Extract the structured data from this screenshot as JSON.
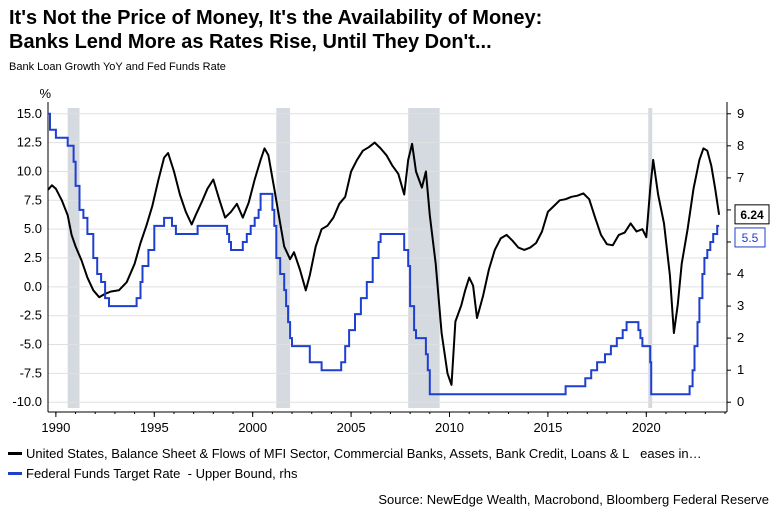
{
  "header": {
    "title_line1": "It's Not the Price of Money, It's the Availability of Money:",
    "title_line2": "Banks Lend More as Rates Rise, Until They Don't...",
    "subtitle": "Bank Loan Growth YoY and Fed Funds Rate"
  },
  "legend": {
    "series1": "United States, Balance Sheet & Flows of MFI Sector, Commercial Banks, Assets, Bank Credit, Loans & L   eases in…",
    "series2": "Federal Funds Target Rate  - Upper Bound, rhs"
  },
  "source": "Source: NewEdge Wealth, Macrobond, Bloomberg Federal Reserve",
  "colors": {
    "loan_growth": "#000000",
    "fed_funds": "#1f3fcf",
    "recession": "#d5d9e0",
    "grid": "#e0e0e0"
  },
  "chart_data": {
    "type": "line",
    "ylabel_left": "%",
    "x_ticks": [
      "1990",
      "1995",
      "2000",
      "2005",
      "2010",
      "2015",
      "2020"
    ],
    "x_range": [
      1989.6,
      2024.1
    ],
    "ylim_left": [
      -10.5,
      15.5
    ],
    "yticks_left": [
      "15.0",
      "12.5",
      "10.0",
      "7.5",
      "5.0",
      "2.5",
      "0.0",
      "-2.5",
      "-5.0",
      "-7.5",
      "-10.0"
    ],
    "ylim_right": [
      0,
      9
    ],
    "yticks_right": [
      "9",
      "8",
      "7",
      "6",
      "5",
      "4",
      "3",
      "2",
      "1",
      "0"
    ],
    "recessions": [
      [
        1990.6,
        1991.2
      ],
      [
        2001.2,
        2001.9
      ],
      [
        2007.9,
        2009.5
      ],
      [
        2020.1,
        2020.3
      ]
    ],
    "end_labels": {
      "loan_growth": "6.24",
      "fed_funds": "5.5"
    },
    "series": [
      {
        "name": "United States, Balance Sheet & Flows of MFI Sector, Commercial Banks, Assets, Bank Credit, Loans & Leases",
        "axis": "left",
        "points": [
          [
            1989.6,
            8.4
          ],
          [
            1989.8,
            8.8
          ],
          [
            1990.0,
            8.5
          ],
          [
            1990.3,
            7.5
          ],
          [
            1990.6,
            6.2
          ],
          [
            1990.8,
            4.5
          ],
          [
            1991.0,
            3.5
          ],
          [
            1991.3,
            2.3
          ],
          [
            1991.6,
            0.8
          ],
          [
            1991.9,
            -0.3
          ],
          [
            1992.2,
            -0.9
          ],
          [
            1992.5,
            -0.6
          ],
          [
            1992.8,
            -0.4
          ],
          [
            1993.2,
            -0.3
          ],
          [
            1993.6,
            0.4
          ],
          [
            1994.0,
            2.0
          ],
          [
            1994.3,
            3.8
          ],
          [
            1994.6,
            5.3
          ],
          [
            1994.9,
            7.0
          ],
          [
            1995.2,
            9.2
          ],
          [
            1995.5,
            11.2
          ],
          [
            1995.7,
            11.6
          ],
          [
            1996.0,
            10.0
          ],
          [
            1996.3,
            8.0
          ],
          [
            1996.6,
            6.5
          ],
          [
            1996.9,
            5.4
          ],
          [
            1997.1,
            6.2
          ],
          [
            1997.4,
            7.3
          ],
          [
            1997.7,
            8.5
          ],
          [
            1998.0,
            9.3
          ],
          [
            1998.3,
            7.6
          ],
          [
            1998.6,
            6.0
          ],
          [
            1998.9,
            6.5
          ],
          [
            1999.2,
            7.2
          ],
          [
            1999.5,
            6.0
          ],
          [
            1999.8,
            7.3
          ],
          [
            2000.1,
            9.3
          ],
          [
            2000.4,
            11.0
          ],
          [
            2000.6,
            12.0
          ],
          [
            2000.8,
            11.4
          ],
          [
            2001.1,
            8.5
          ],
          [
            2001.4,
            5.5
          ],
          [
            2001.6,
            3.5
          ],
          [
            2001.9,
            2.4
          ],
          [
            2002.1,
            3.0
          ],
          [
            2002.4,
            1.5
          ],
          [
            2002.7,
            -0.3
          ],
          [
            2002.9,
            1.0
          ],
          [
            2003.2,
            3.5
          ],
          [
            2003.5,
            5.0
          ],
          [
            2003.8,
            5.3
          ],
          [
            2004.1,
            6.0
          ],
          [
            2004.4,
            7.2
          ],
          [
            2004.7,
            7.8
          ],
          [
            2005.0,
            10.0
          ],
          [
            2005.3,
            11.0
          ],
          [
            2005.6,
            11.8
          ],
          [
            2005.9,
            12.1
          ],
          [
            2006.2,
            12.5
          ],
          [
            2006.5,
            12.0
          ],
          [
            2006.8,
            11.4
          ],
          [
            2007.1,
            10.5
          ],
          [
            2007.4,
            9.8
          ],
          [
            2007.7,
            8.0
          ],
          [
            2007.9,
            11.0
          ],
          [
            2008.1,
            12.4
          ],
          [
            2008.3,
            10.0
          ],
          [
            2008.6,
            8.6
          ],
          [
            2008.8,
            10.0
          ],
          [
            2009.0,
            6.2
          ],
          [
            2009.3,
            2.0
          ],
          [
            2009.6,
            -4.0
          ],
          [
            2009.9,
            -7.5
          ],
          [
            2010.1,
            -8.5
          ],
          [
            2010.3,
            -3.0
          ],
          [
            2010.6,
            -1.6
          ],
          [
            2010.8,
            -0.3
          ],
          [
            2011.0,
            0.8
          ],
          [
            2011.2,
            0.1
          ],
          [
            2011.4,
            -2.7
          ],
          [
            2011.7,
            -0.8
          ],
          [
            2012.0,
            1.5
          ],
          [
            2012.3,
            3.2
          ],
          [
            2012.6,
            4.2
          ],
          [
            2012.9,
            4.5
          ],
          [
            2013.2,
            4.0
          ],
          [
            2013.5,
            3.4
          ],
          [
            2013.8,
            3.2
          ],
          [
            2014.1,
            3.4
          ],
          [
            2014.4,
            3.8
          ],
          [
            2014.7,
            4.8
          ],
          [
            2015.0,
            6.5
          ],
          [
            2015.3,
            7.0
          ],
          [
            2015.6,
            7.5
          ],
          [
            2015.9,
            7.6
          ],
          [
            2016.2,
            7.8
          ],
          [
            2016.5,
            7.9
          ],
          [
            2016.8,
            8.1
          ],
          [
            2017.1,
            7.6
          ],
          [
            2017.4,
            6.0
          ],
          [
            2017.7,
            4.5
          ],
          [
            2018.0,
            3.7
          ],
          [
            2018.3,
            3.6
          ],
          [
            2018.6,
            4.5
          ],
          [
            2018.9,
            4.7
          ],
          [
            2019.2,
            5.5
          ],
          [
            2019.5,
            4.8
          ],
          [
            2019.8,
            5.0
          ],
          [
            2020.0,
            4.3
          ],
          [
            2020.2,
            8.5
          ],
          [
            2020.35,
            11.0
          ],
          [
            2020.6,
            8.0
          ],
          [
            2020.9,
            5.5
          ],
          [
            2021.2,
            1.0
          ],
          [
            2021.4,
            -4.0
          ],
          [
            2021.6,
            -1.5
          ],
          [
            2021.8,
            2.0
          ],
          [
            2022.1,
            5.0
          ],
          [
            2022.4,
            8.5
          ],
          [
            2022.7,
            11.0
          ],
          [
            2022.9,
            12.0
          ],
          [
            2023.1,
            11.8
          ],
          [
            2023.3,
            10.5
          ],
          [
            2023.5,
            8.5
          ],
          [
            2023.7,
            6.24
          ]
        ]
      },
      {
        "name": "Federal Funds Target Rate - Upper Bound",
        "axis": "right",
        "points": [
          [
            1989.6,
            9.0
          ],
          [
            1989.7,
            8.5
          ],
          [
            1990.0,
            8.25
          ],
          [
            1990.6,
            8.0
          ],
          [
            1990.9,
            7.5
          ],
          [
            1991.0,
            6.75
          ],
          [
            1991.2,
            6.0
          ],
          [
            1991.4,
            5.75
          ],
          [
            1991.6,
            5.25
          ],
          [
            1991.9,
            4.5
          ],
          [
            1992.1,
            4.0
          ],
          [
            1992.3,
            3.75
          ],
          [
            1992.5,
            3.25
          ],
          [
            1992.7,
            3.0
          ],
          [
            1994.0,
            3.0
          ],
          [
            1994.1,
            3.25
          ],
          [
            1994.3,
            3.75
          ],
          [
            1994.4,
            4.25
          ],
          [
            1994.7,
            4.75
          ],
          [
            1995.0,
            5.5
          ],
          [
            1995.5,
            5.75
          ],
          [
            1995.9,
            5.5
          ],
          [
            1996.1,
            5.25
          ],
          [
            1997.2,
            5.5
          ],
          [
            1998.7,
            5.25
          ],
          [
            1998.8,
            5.0
          ],
          [
            1998.9,
            4.75
          ],
          [
            1999.5,
            5.0
          ],
          [
            1999.7,
            5.25
          ],
          [
            1999.9,
            5.5
          ],
          [
            2000.1,
            5.75
          ],
          [
            2000.3,
            6.0
          ],
          [
            2000.4,
            6.5
          ],
          [
            2000.9,
            6.5
          ],
          [
            2001.0,
            6.0
          ],
          [
            2001.1,
            5.5
          ],
          [
            2001.2,
            4.5
          ],
          [
            2001.4,
            4.0
          ],
          [
            2001.6,
            3.5
          ],
          [
            2001.7,
            3.0
          ],
          [
            2001.8,
            2.5
          ],
          [
            2001.9,
            2.0
          ],
          [
            2002.0,
            1.75
          ],
          [
            2002.9,
            1.25
          ],
          [
            2003.5,
            1.0
          ],
          [
            2004.5,
            1.25
          ],
          [
            2004.7,
            1.75
          ],
          [
            2004.9,
            2.25
          ],
          [
            2005.2,
            2.75
          ],
          [
            2005.5,
            3.25
          ],
          [
            2005.8,
            3.75
          ],
          [
            2006.1,
            4.5
          ],
          [
            2006.4,
            5.0
          ],
          [
            2006.5,
            5.25
          ],
          [
            2007.7,
            4.75
          ],
          [
            2007.9,
            4.25
          ],
          [
            2008.0,
            3.0
          ],
          [
            2008.2,
            2.25
          ],
          [
            2008.3,
            2.0
          ],
          [
            2008.8,
            1.5
          ],
          [
            2008.9,
            1.0
          ],
          [
            2009.0,
            0.25
          ],
          [
            2015.9,
            0.5
          ],
          [
            2016.9,
            0.75
          ],
          [
            2017.2,
            1.0
          ],
          [
            2017.5,
            1.25
          ],
          [
            2017.9,
            1.5
          ],
          [
            2018.2,
            1.75
          ],
          [
            2018.5,
            2.0
          ],
          [
            2018.8,
            2.25
          ],
          [
            2019.0,
            2.5
          ],
          [
            2019.6,
            2.25
          ],
          [
            2019.7,
            2.0
          ],
          [
            2019.8,
            1.75
          ],
          [
            2020.2,
            1.25
          ],
          [
            2020.25,
            0.25
          ],
          [
            2022.2,
            0.5
          ],
          [
            2022.35,
            1.0
          ],
          [
            2022.45,
            1.75
          ],
          [
            2022.6,
            2.5
          ],
          [
            2022.7,
            3.25
          ],
          [
            2022.85,
            4.0
          ],
          [
            2022.95,
            4.5
          ],
          [
            2023.1,
            4.75
          ],
          [
            2023.25,
            5.0
          ],
          [
            2023.4,
            5.25
          ],
          [
            2023.6,
            5.5
          ],
          [
            2023.7,
            5.5
          ]
        ]
      }
    ]
  }
}
